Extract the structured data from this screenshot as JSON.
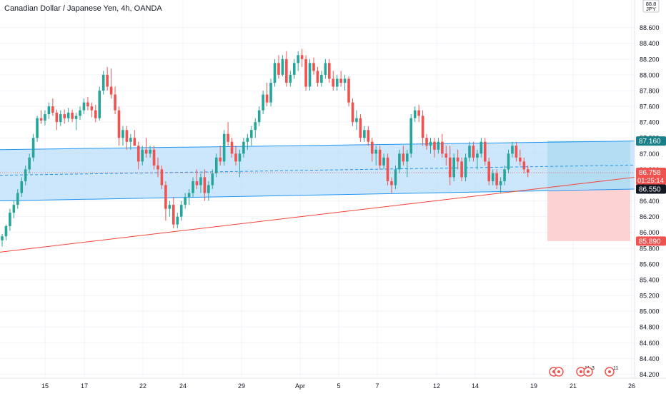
{
  "header": {
    "title": "Canadian Dollar / Japanese Yen, 4h, OANDA"
  },
  "currency_badge": {
    "line1": "88.8",
    "line2": "JPY"
  },
  "price_labels": {
    "upper": {
      "text": "87.160",
      "value": 87.16,
      "color": "#177f87"
    },
    "current": {
      "text": "86.758",
      "value": 86.758,
      "color": "#ef5350"
    },
    "countdown": {
      "text": "01:25:14"
    },
    "lower": {
      "text": "86.550",
      "value": 86.55,
      "color": "#177f87"
    },
    "stop": {
      "text": "85.890",
      "value": 85.89,
      "color": "#ef5350"
    }
  },
  "event_icons": [
    {
      "badge": ""
    },
    {
      "badge": ""
    },
    {
      "badge": "11"
    },
    {
      "badge": "3"
    },
    {
      "badge": "11"
    }
  ],
  "colors": {
    "up": "#26a69a",
    "down": "#ef5350",
    "channel_line": "#2196f3",
    "channel_fill": "#bbdefb",
    "trendline": "#f44336",
    "profit_zone": "#93d2d0",
    "loss_zone": "#fcd0d0",
    "grid": "#f0f3fa",
    "axis_text": "#131722"
  },
  "chart_data": {
    "type": "candlestick",
    "title": "Canadian Dollar / Japanese Yen, 4h, OANDA",
    "y_axis": {
      "range": [
        84.15,
        88.95
      ],
      "ticks": [
        "88.600",
        "88.400",
        "88.200",
        "88.000",
        "87.800",
        "87.600",
        "87.400",
        "87.200",
        "87.000",
        "86.800",
        "86.600",
        "86.400",
        "86.200",
        "86.000",
        "85.800",
        "85.600",
        "85.400",
        "85.200",
        "85.000",
        "84.800",
        "84.600",
        "84.400",
        "84.200"
      ]
    },
    "x_axis": {
      "ticks": [
        "15",
        "17",
        "22",
        "24",
        "29",
        "Apr",
        "5",
        "7",
        "12",
        "14",
        "19",
        "21",
        "26"
      ]
    },
    "grid": true,
    "ohlc": [
      [
        85.9,
        85.98,
        85.82,
        85.95
      ],
      [
        85.95,
        86.1,
        85.9,
        86.08
      ],
      [
        86.08,
        86.3,
        86.02,
        86.25
      ],
      [
        86.25,
        86.4,
        86.18,
        86.35
      ],
      [
        86.35,
        86.55,
        86.3,
        86.5
      ],
      [
        86.5,
        86.7,
        86.45,
        86.65
      ],
      [
        86.65,
        86.85,
        86.6,
        86.8
      ],
      [
        86.8,
        87.0,
        86.75,
        86.95
      ],
      [
        86.95,
        87.25,
        86.9,
        87.2
      ],
      [
        87.2,
        87.48,
        87.15,
        87.45
      ],
      [
        87.45,
        87.55,
        87.38,
        87.42
      ],
      [
        87.42,
        87.55,
        87.36,
        87.5
      ],
      [
        87.5,
        87.65,
        87.44,
        87.6
      ],
      [
        87.6,
        87.7,
        87.48,
        87.52
      ],
      [
        87.52,
        87.56,
        87.3,
        87.4
      ],
      [
        87.4,
        87.55,
        87.35,
        87.5
      ],
      [
        87.5,
        87.56,
        87.38,
        87.45
      ],
      [
        87.45,
        87.58,
        87.4,
        87.52
      ],
      [
        87.52,
        87.56,
        87.4,
        87.44
      ],
      [
        87.44,
        87.52,
        87.3,
        87.48
      ],
      [
        87.48,
        87.6,
        87.43,
        87.55
      ],
      [
        87.55,
        87.7,
        87.5,
        87.65
      ],
      [
        87.65,
        87.72,
        87.55,
        87.6
      ],
      [
        87.6,
        87.65,
        87.46,
        87.55
      ],
      [
        87.55,
        87.62,
        87.4,
        87.45
      ],
      [
        87.45,
        87.85,
        87.42,
        87.8
      ],
      [
        87.8,
        88.05,
        87.75,
        88.0
      ],
      [
        88.0,
        88.1,
        87.8,
        87.85
      ],
      [
        87.85,
        88.08,
        87.7,
        87.75
      ],
      [
        87.75,
        87.85,
        87.5,
        87.55
      ],
      [
        87.55,
        87.6,
        87.1,
        87.2
      ],
      [
        87.2,
        87.35,
        87.1,
        87.3
      ],
      [
        87.3,
        87.35,
        87.05,
        87.15
      ],
      [
        87.15,
        87.25,
        87.05,
        87.2
      ],
      [
        87.2,
        87.3,
        87.1,
        87.1
      ],
      [
        87.1,
        87.15,
        86.8,
        86.9
      ],
      [
        86.9,
        87.1,
        86.85,
        87.05
      ],
      [
        87.05,
        87.2,
        86.95,
        87.0
      ],
      [
        87.0,
        87.1,
        86.95,
        87.05
      ],
      [
        87.05,
        87.1,
        86.8,
        86.85
      ],
      [
        86.85,
        86.95,
        86.7,
        86.8
      ],
      [
        86.8,
        86.85,
        86.55,
        86.6
      ],
      [
        86.6,
        86.65,
        86.15,
        86.3
      ],
      [
        86.3,
        86.4,
        86.2,
        86.35
      ],
      [
        86.35,
        86.45,
        86.05,
        86.1
      ],
      [
        86.1,
        86.25,
        86.05,
        86.2
      ],
      [
        86.2,
        86.4,
        86.15,
        86.35
      ],
      [
        86.35,
        86.5,
        86.3,
        86.45
      ],
      [
        86.45,
        86.55,
        86.35,
        86.5
      ],
      [
        86.5,
        86.7,
        86.45,
        86.65
      ],
      [
        86.65,
        86.8,
        86.55,
        86.6
      ],
      [
        86.6,
        86.75,
        86.5,
        86.7
      ],
      [
        86.7,
        86.8,
        86.4,
        86.5
      ],
      [
        86.5,
        86.65,
        86.4,
        86.6
      ],
      [
        86.6,
        86.8,
        86.55,
        86.75
      ],
      [
        86.75,
        87.0,
        86.7,
        86.95
      ],
      [
        86.95,
        87.1,
        86.85,
        86.9
      ],
      [
        86.9,
        87.3,
        86.85,
        87.25
      ],
      [
        87.25,
        87.4,
        87.1,
        87.15
      ],
      [
        87.15,
        87.2,
        86.95,
        87.0
      ],
      [
        87.0,
        87.1,
        86.85,
        86.9
      ],
      [
        86.9,
        87.05,
        86.7,
        87.0
      ],
      [
        87.0,
        87.2,
        86.95,
        87.15
      ],
      [
        87.15,
        87.25,
        87.05,
        87.2
      ],
      [
        87.2,
        87.35,
        87.1,
        87.3
      ],
      [
        87.3,
        87.45,
        87.2,
        87.4
      ],
      [
        87.4,
        87.6,
        87.35,
        87.55
      ],
      [
        87.55,
        87.8,
        87.5,
        87.75
      ],
      [
        87.75,
        87.9,
        87.6,
        87.65
      ],
      [
        87.65,
        87.95,
        87.6,
        87.9
      ],
      [
        87.9,
        88.2,
        87.85,
        88.15
      ],
      [
        88.15,
        88.25,
        87.95,
        88.0
      ],
      [
        88.0,
        88.25,
        87.98,
        88.2
      ],
      [
        88.2,
        88.3,
        87.85,
        87.9
      ],
      [
        87.9,
        88.05,
        87.85,
        88.0
      ],
      [
        88.0,
        88.2,
        87.95,
        88.15
      ],
      [
        88.15,
        88.3,
        88.05,
        88.25
      ],
      [
        88.25,
        88.33,
        88.1,
        88.2
      ],
      [
        88.2,
        88.25,
        87.8,
        87.85
      ],
      [
        87.85,
        88.2,
        87.8,
        88.15
      ],
      [
        88.15,
        88.22,
        88.0,
        88.05
      ],
      [
        88.05,
        88.1,
        87.85,
        87.9
      ],
      [
        87.9,
        88.05,
        87.85,
        88.0
      ],
      [
        88.0,
        88.2,
        87.95,
        88.15
      ],
      [
        88.15,
        88.2,
        87.9,
        87.95
      ],
      [
        87.95,
        88.05,
        87.8,
        87.85
      ],
      [
        87.85,
        88.0,
        87.8,
        87.95
      ],
      [
        87.95,
        88.05,
        87.85,
        87.9
      ],
      [
        87.9,
        88.0,
        87.8,
        87.95
      ],
      [
        87.95,
        87.98,
        87.6,
        87.65
      ],
      [
        87.65,
        87.7,
        87.35,
        87.4
      ],
      [
        87.4,
        87.55,
        87.3,
        87.45
      ],
      [
        87.45,
        87.5,
        87.15,
        87.2
      ],
      [
        87.2,
        87.35,
        87.15,
        87.3
      ],
      [
        87.3,
        87.35,
        87.1,
        87.15
      ],
      [
        87.15,
        87.2,
        86.9,
        87.0
      ],
      [
        87.0,
        87.1,
        86.85,
        87.05
      ],
      [
        87.05,
        87.1,
        86.8,
        86.85
      ],
      [
        86.85,
        87.0,
        86.8,
        86.95
      ],
      [
        86.95,
        87.0,
        86.6,
        86.65
      ],
      [
        86.65,
        86.7,
        86.5,
        86.6
      ],
      [
        86.6,
        86.85,
        86.55,
        86.8
      ],
      [
        86.8,
        87.05,
        86.75,
        87.0
      ],
      [
        87.0,
        87.1,
        86.85,
        86.9
      ],
      [
        86.9,
        87.05,
        86.7,
        87.0
      ],
      [
        87.0,
        87.5,
        86.95,
        87.45
      ],
      [
        87.45,
        87.6,
        87.4,
        87.55
      ],
      [
        87.55,
        87.62,
        87.4,
        87.48
      ],
      [
        87.48,
        87.55,
        87.1,
        87.2
      ],
      [
        87.2,
        87.25,
        87.05,
        87.1
      ],
      [
        87.1,
        87.2,
        87.0,
        87.15
      ],
      [
        87.15,
        87.2,
        86.95,
        87.05
      ],
      [
        87.05,
        87.2,
        87.0,
        87.15
      ],
      [
        87.15,
        87.25,
        86.95,
        87.0
      ],
      [
        87.0,
        87.1,
        86.85,
        86.95
      ],
      [
        86.95,
        87.1,
        86.6,
        86.7
      ],
      [
        86.7,
        87.0,
        86.65,
        86.95
      ],
      [
        86.95,
        87.05,
        86.8,
        86.9
      ],
      [
        86.9,
        86.95,
        86.65,
        86.7
      ],
      [
        86.7,
        87.0,
        86.65,
        86.95
      ],
      [
        86.95,
        87.15,
        86.9,
        87.1
      ],
      [
        87.1,
        87.15,
        86.9,
        86.95
      ],
      [
        86.95,
        87.05,
        86.8,
        87.0
      ],
      [
        87.0,
        87.2,
        86.95,
        87.15
      ],
      [
        87.15,
        87.2,
        86.85,
        86.9
      ],
      [
        86.9,
        86.95,
        86.6,
        86.65
      ],
      [
        86.65,
        86.8,
        86.6,
        86.75
      ],
      [
        86.75,
        86.8,
        86.55,
        86.6
      ],
      [
        86.6,
        86.7,
        86.5,
        86.65
      ],
      [
        86.65,
        86.85,
        86.6,
        86.8
      ],
      [
        86.8,
        87.05,
        86.75,
        87.0
      ],
      [
        87.0,
        87.15,
        86.95,
        87.1
      ],
      [
        87.1,
        87.15,
        86.9,
        86.95
      ],
      [
        86.95,
        87.05,
        86.85,
        86.9
      ],
      [
        86.9,
        86.95,
        86.75,
        86.8
      ],
      [
        86.8,
        86.85,
        86.7,
        86.76
      ]
    ],
    "channel": {
      "upper": {
        "start": 87.05,
        "end": 87.16
      },
      "lower": {
        "start": 86.4,
        "end": 86.55
      }
    },
    "trendline": {
      "start": 85.75,
      "end": 86.7
    },
    "position": {
      "entry": 86.55,
      "target": 87.16,
      "stop": 85.89
    }
  }
}
